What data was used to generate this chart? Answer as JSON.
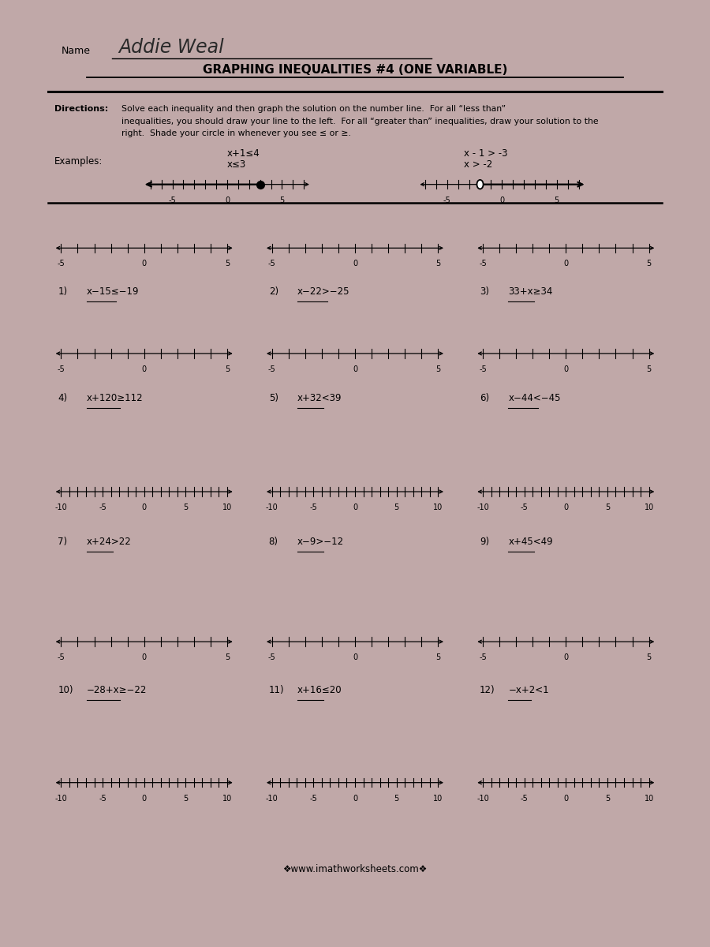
{
  "title": "GRAPHING INEQUALITIES #4 (ONE VARIABLE)",
  "name_label": "Name",
  "name_text": "Addie Weal",
  "directions_bold": "Directions:",
  "directions_rest": "  Solve each inequality and then graph the solution on the number line.  For all “less than” inequalities, you should draw your line to the left.  For all “greater than” inequalities, draw your solution to the right.  Shade your circle in whenever you see ≤ or ≥.",
  "bg_color": "#c0a8a8",
  "paper_color": "#eeeeee",
  "ex1_line1": "x+1≤4",
  "ex1_line2": "x≤3",
  "ex2_line1": "x - 1 > -3",
  "ex2_line2": "x > -2",
  "problems": [
    {
      "num": "1)",
      "eq": "x−15≤−19",
      "large": false
    },
    {
      "num": "2)",
      "eq": "x−22>−25",
      "large": false
    },
    {
      "num": "3)",
      "eq": "33+x≥34",
      "large": false
    },
    {
      "num": "4)",
      "eq": "x+120≥112",
      "large": false
    },
    {
      "num": "5)",
      "eq": "x+32<39",
      "large": false
    },
    {
      "num": "6)",
      "eq": "x−44<−45",
      "large": false
    },
    {
      "num": "7)",
      "eq": "x+24>22",
      "large": true
    },
    {
      "num": "8)",
      "eq": "x−9>−12",
      "large": true
    },
    {
      "num": "9)",
      "eq": "x+45<49",
      "large": true
    },
    {
      "num": "10)",
      "eq": "−28+x≥−22",
      "large": false
    },
    {
      "num": "11)",
      "eq": "x+16≤20",
      "large": false
    },
    {
      "num": "12)",
      "eq": "−x+2<1",
      "large": false
    }
  ],
  "website": "❖www.imathworksheets.com❖"
}
